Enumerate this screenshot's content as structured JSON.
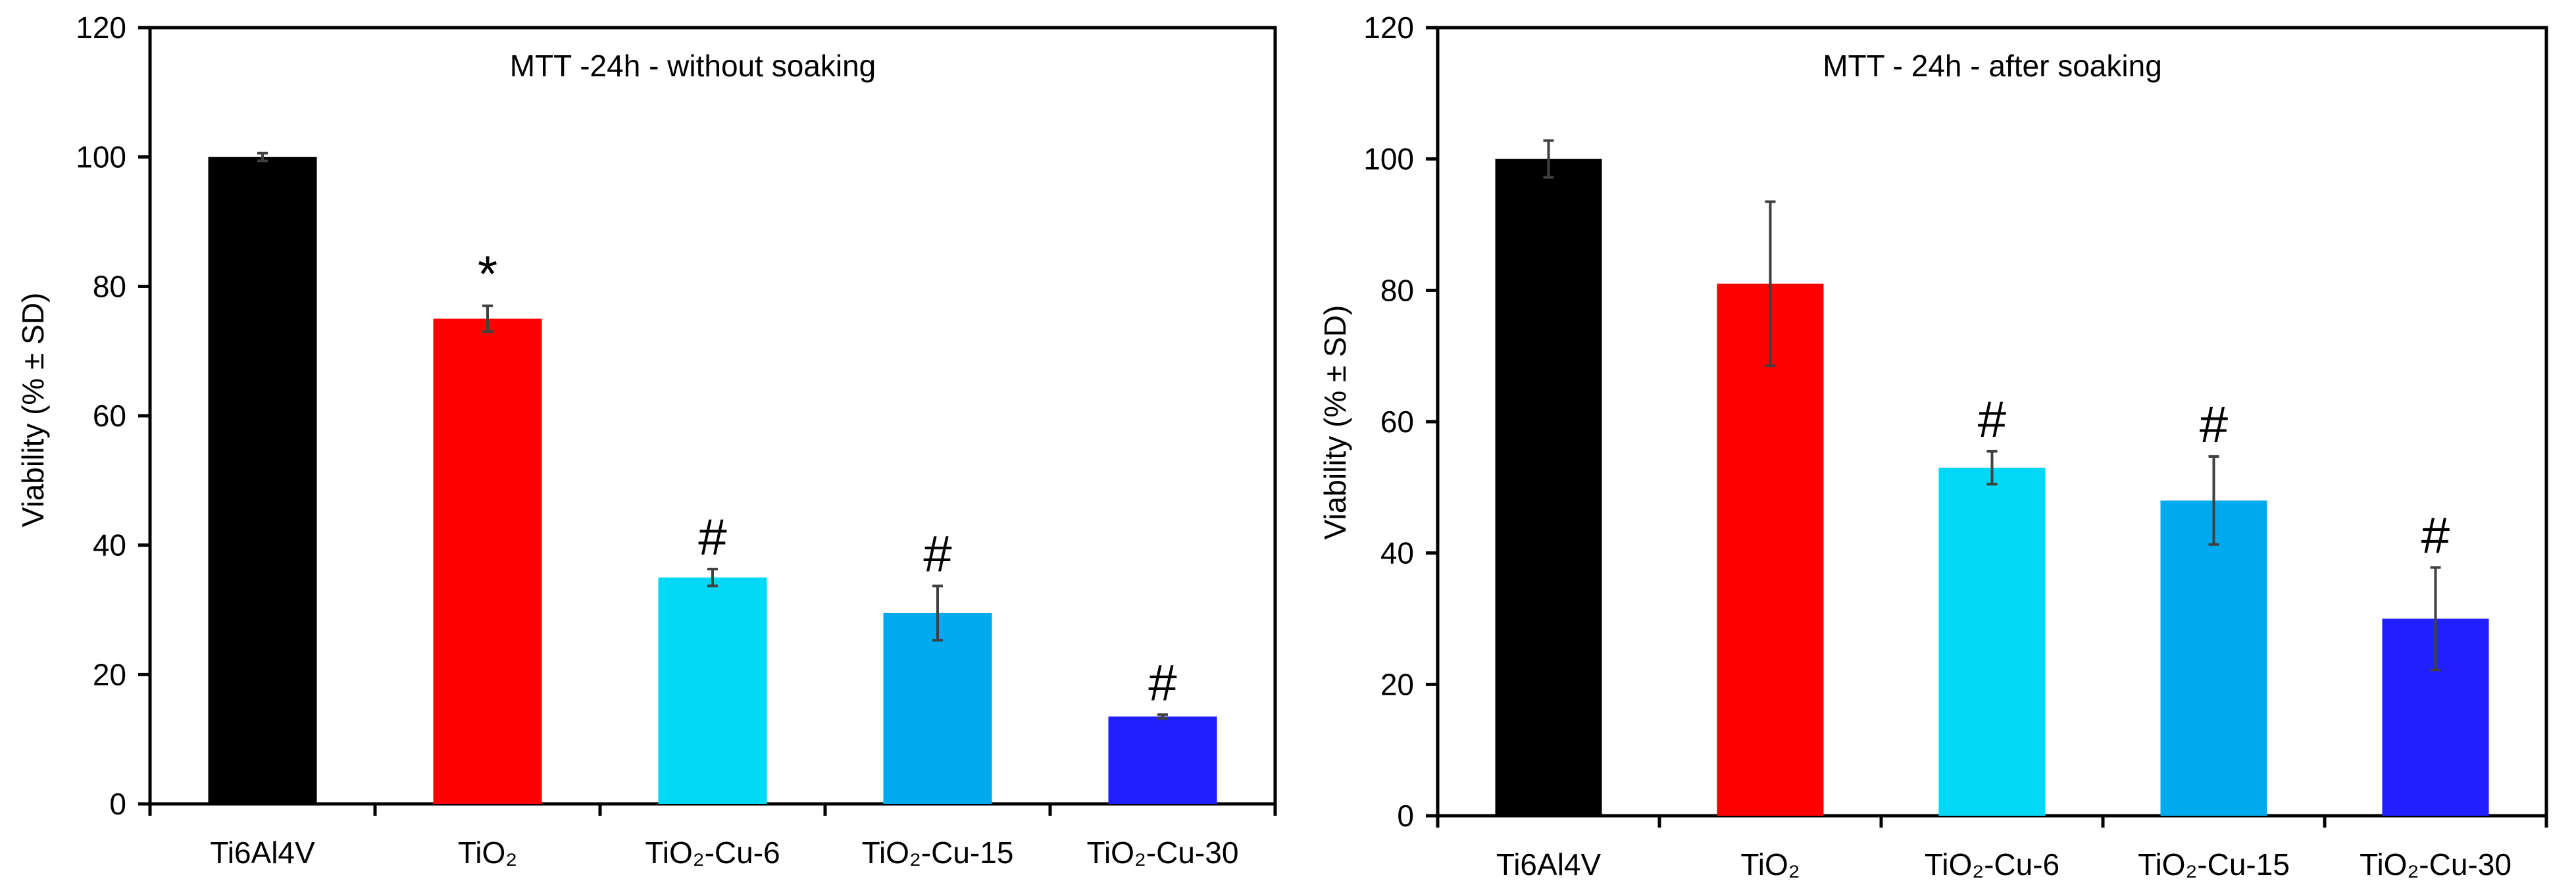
{
  "chart_data": [
    {
      "type": "bar",
      "title": "MTT -24h - without soaking",
      "ylabel": "Viability (% ± SD)",
      "xlabel": "",
      "ylim": [
        0,
        120
      ],
      "yticks": [
        0,
        20,
        40,
        60,
        80,
        100,
        120
      ],
      "categories": [
        "Ti6Al4V",
        "TiO₂",
        "TiO₂-Cu-6",
        "TiO₂-Cu-15",
        "TiO₂-Cu-30"
      ],
      "values": [
        100,
        75,
        35,
        29.5,
        13.5
      ],
      "errors": [
        0.6,
        2,
        1.3,
        4.2,
        0.3
      ],
      "colors": [
        "#000000",
        "#ff0000",
        "#00d8f5",
        "#00aaee",
        "#2020ff"
      ],
      "significance": [
        "",
        "*",
        "#",
        "#",
        "#"
      ],
      "grid": false
    },
    {
      "type": "bar",
      "title": "MTT - 24h - after soaking",
      "ylabel": "Viability (% ± SD)",
      "xlabel": "",
      "ylim": [
        0,
        120
      ],
      "yticks": [
        0,
        20,
        40,
        60,
        80,
        100,
        120
      ],
      "categories": [
        "Ti6Al4V",
        "TiO₂",
        "TiO₂-Cu-6",
        "TiO₂-Cu-15",
        "TiO₂-Cu-30"
      ],
      "values": [
        100,
        81,
        53,
        48,
        30
      ],
      "errors": [
        2.8,
        12.5,
        2.5,
        6.7,
        7.8
      ],
      "colors": [
        "#000000",
        "#ff0000",
        "#00d8f5",
        "#00aaee",
        "#2020ff"
      ],
      "significance": [
        "",
        "",
        "#",
        "#",
        "#"
      ],
      "grid": false
    }
  ]
}
